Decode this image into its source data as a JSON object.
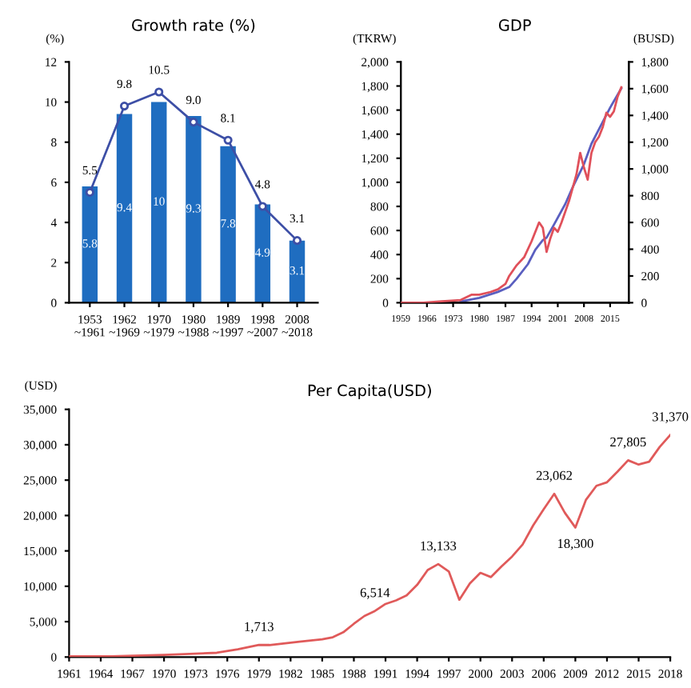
{
  "chart_data": [
    {
      "type": "bar",
      "title": "Growth rate (%)",
      "ylabel": "(%)",
      "categories": [
        "1953\n~1961",
        "1962\n~1969",
        "1970\n~1979",
        "1980\n~1988",
        "1989\n~1997",
        "1998\n~2007",
        "2008\n~2018"
      ],
      "ylim": [
        0,
        12
      ],
      "yticks": [
        0,
        2,
        4,
        6,
        8,
        10,
        12
      ],
      "grid": false,
      "legend": false,
      "series": [
        {
          "type": "bar",
          "color": "#1f6dc0",
          "values": [
            5.8,
            9.4,
            10,
            9.3,
            7.8,
            4.9,
            3.1
          ],
          "value_labels": [
            "5.8",
            "9.4",
            "10",
            "9.3",
            "7.8",
            "4.9",
            "3.1"
          ]
        },
        {
          "type": "line",
          "color": "#3d4fa6",
          "marker": "circle",
          "line_style": "solid",
          "values": [
            5.5,
            9.8,
            10.5,
            9.0,
            8.1,
            4.8,
            3.1
          ],
          "value_labels": [
            "5.5",
            "9.8",
            "10.5",
            "9.0",
            "8.1",
            "4.8",
            "3.1"
          ]
        }
      ]
    },
    {
      "type": "line",
      "title": "GDP",
      "ylabel": "(TKRW)",
      "y2label": "(BUSD)",
      "xlim": [
        1959,
        2020
      ],
      "xticks": [
        1959,
        1966,
        1973,
        1980,
        1987,
        1994,
        2001,
        2008,
        2015
      ],
      "ylim": [
        0,
        2000
      ],
      "yticks": [
        0,
        200,
        400,
        600,
        800,
        {
          "value": 1000,
          "label": "1,000"
        },
        {
          "value": 1200,
          "label": "1,200"
        },
        {
          "value": 1400,
          "label": "1,400"
        },
        {
          "value": 1600,
          "label": "1,600"
        },
        {
          "value": 1800,
          "label": "1,800"
        },
        {
          "value": 2000,
          "label": "2,000"
        }
      ],
      "y2lim": [
        0,
        1800
      ],
      "y2ticks": [
        0,
        200,
        400,
        600,
        800,
        {
          "value": 1000,
          "label": "1,000"
        },
        {
          "value": 1200,
          "label": "1,200"
        },
        {
          "value": 1400,
          "label": "1,400"
        },
        {
          "value": 1600,
          "label": "1,600"
        },
        {
          "value": 1800,
          "label": "1,800"
        }
      ],
      "grid": false,
      "legend": false,
      "series": [
        {
          "color": "#5a5fc0",
          "axis": "y",
          "x": [
            1975,
            1980,
            1985,
            1988,
            1990,
            1993,
            1995,
            1997,
            1998,
            2000,
            2003,
            2005,
            2008,
            2010,
            2012,
            2015,
            2018
          ],
          "values": [
            10,
            40,
            90,
            130,
            200,
            320,
            440,
            520,
            540,
            650,
            820,
            960,
            1150,
            1320,
            1440,
            1620,
            1780
          ]
        },
        {
          "color": "#e0505a",
          "axis": "y2",
          "x": [
            1959,
            1965,
            1970,
            1975,
            1978,
            1980,
            1983,
            1985,
            1987,
            1988,
            1990,
            1992,
            1994,
            1996,
            1997,
            1998,
            1999,
            2000,
            2001,
            2002,
            2004,
            2006,
            2007,
            2008,
            2009,
            2010,
            2011,
            2012,
            2013,
            2014,
            2015,
            2016,
            2017,
            2018
          ],
          "values": [
            0,
            0,
            10,
            20,
            60,
            60,
            80,
            100,
            140,
            200,
            280,
            340,
            460,
            600,
            560,
            380,
            480,
            560,
            530,
            600,
            760,
            960,
            1120,
            1010,
            920,
            1120,
            1200,
            1240,
            1310,
            1420,
            1390,
            1430,
            1540,
            1610
          ]
        }
      ]
    },
    {
      "type": "line",
      "title": "Per Capita(USD)",
      "ylabel": "(USD)",
      "xlim": [
        1961,
        2018
      ],
      "xticks": [
        1961,
        1964,
        1967,
        1970,
        1973,
        1976,
        1979,
        1982,
        1985,
        1988,
        1991,
        1994,
        1997,
        2000,
        2003,
        2006,
        2009,
        2012,
        2015,
        2018
      ],
      "ylim": [
        0,
        35000
      ],
      "yticks": [
        0,
        {
          "value": 5000,
          "label": "5,000"
        },
        {
          "value": 10000,
          "label": "10,000"
        },
        {
          "value": 15000,
          "label": "15,000"
        },
        {
          "value": 20000,
          "label": "20,000"
        },
        {
          "value": 25000,
          "label": "25,000"
        },
        {
          "value": 30000,
          "label": "30,000"
        },
        {
          "value": 35000,
          "label": "35,000"
        }
      ],
      "grid": false,
      "legend": false,
      "series": [
        {
          "color": "#e05a5a",
          "x": [
            1961,
            1965,
            1970,
            1975,
            1977,
            1978,
            1979,
            1980,
            1983,
            1985,
            1986,
            1987,
            1988,
            1989,
            1990,
            1991,
            1992,
            1993,
            1994,
            1995,
            1996,
            1997,
            1998,
            1999,
            2000,
            2001,
            2002,
            2003,
            2004,
            2005,
            2006,
            2007,
            2008,
            2009,
            2010,
            2011,
            2012,
            2013,
            2014,
            2015,
            2016,
            2017,
            2018
          ],
          "values": [
            100,
            100,
            300,
            600,
            1100,
            1400,
            1713,
            1700,
            2200,
            2500,
            2800,
            3500,
            4700,
            5800,
            6514,
            7500,
            8000,
            8700,
            10200,
            12300,
            13133,
            12100,
            8100,
            10400,
            11900,
            11300,
            12800,
            14200,
            15900,
            18600,
            20900,
            23062,
            20400,
            18300,
            22200,
            24200,
            24700,
            26200,
            27805,
            27200,
            27600,
            29700,
            31370
          ]
        }
      ],
      "annotations": [
        {
          "text": "1,713",
          "x": 1979,
          "y": 1713
        },
        {
          "text": "6,514",
          "x": 1990,
          "y": 6514
        },
        {
          "text": "13,133",
          "x": 1996,
          "y": 13133
        },
        {
          "text": "23,062",
          "x": 2007,
          "y": 23062
        },
        {
          "text": "18,300",
          "x": 2009,
          "y": 18300
        },
        {
          "text": "27,805",
          "x": 2014,
          "y": 27805
        },
        {
          "text": "31,370",
          "x": 2018,
          "y": 31370
        }
      ]
    }
  ]
}
